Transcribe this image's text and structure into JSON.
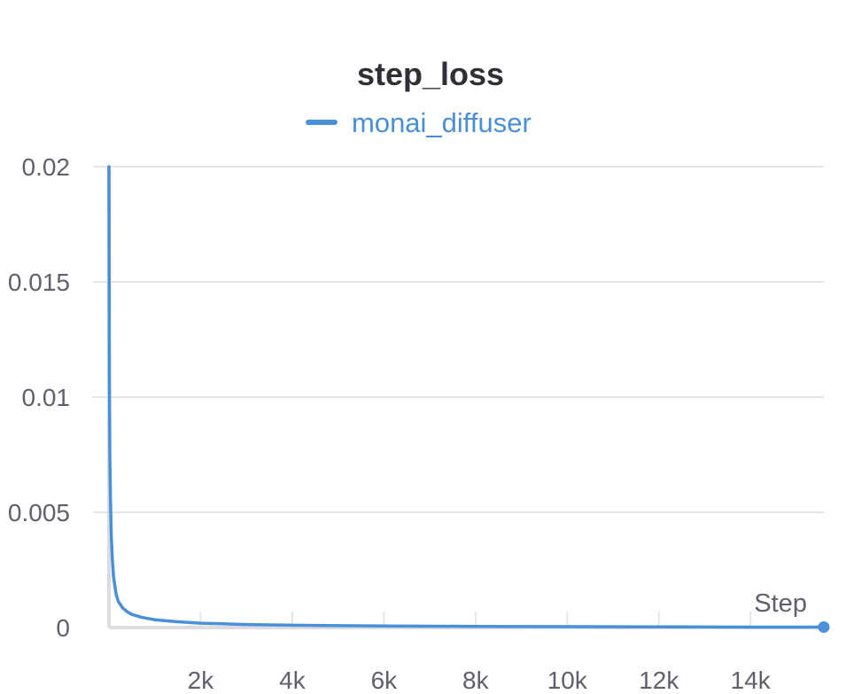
{
  "chart_data": {
    "type": "line",
    "title": "step_loss",
    "xlabel": "Step",
    "ylabel": "",
    "xlim": [
      0,
      15600
    ],
    "ylim": [
      0,
      0.02
    ],
    "x_ticks": [
      2000,
      4000,
      6000,
      8000,
      10000,
      12000,
      14000
    ],
    "x_tick_labels": [
      "2k",
      "4k",
      "6k",
      "8k",
      "10k",
      "12k",
      "14k"
    ],
    "y_ticks": [
      0,
      0.005,
      0.01,
      0.015,
      0.02
    ],
    "y_tick_labels": [
      "0",
      "0.005",
      "0.01",
      "0.015",
      "0.02"
    ],
    "grid": true,
    "legend_position": "top-center",
    "series": [
      {
        "name": "monai_diffuser",
        "color": "#4a90d9",
        "x": [
          0,
          5,
          10,
          20,
          30,
          50,
          75,
          100,
          150,
          200,
          300,
          400,
          500,
          700,
          1000,
          1500,
          2000,
          3000,
          4000,
          5000,
          6000,
          8000,
          10000,
          12000,
          14000,
          15600
        ],
        "y": [
          0.02,
          0.015,
          0.011,
          0.0075,
          0.0058,
          0.004,
          0.0029,
          0.0022,
          0.0015,
          0.00115,
          0.00085,
          0.00068,
          0.00057,
          0.00045,
          0.00034,
          0.00025,
          0.00019,
          0.00013,
          0.0001,
          8e-05,
          7e-05,
          5e-05,
          4e-05,
          3e-05,
          2e-05,
          2e-05
        ]
      }
    ],
    "end_marker": {
      "x": 15600,
      "y": 2e-05
    }
  }
}
